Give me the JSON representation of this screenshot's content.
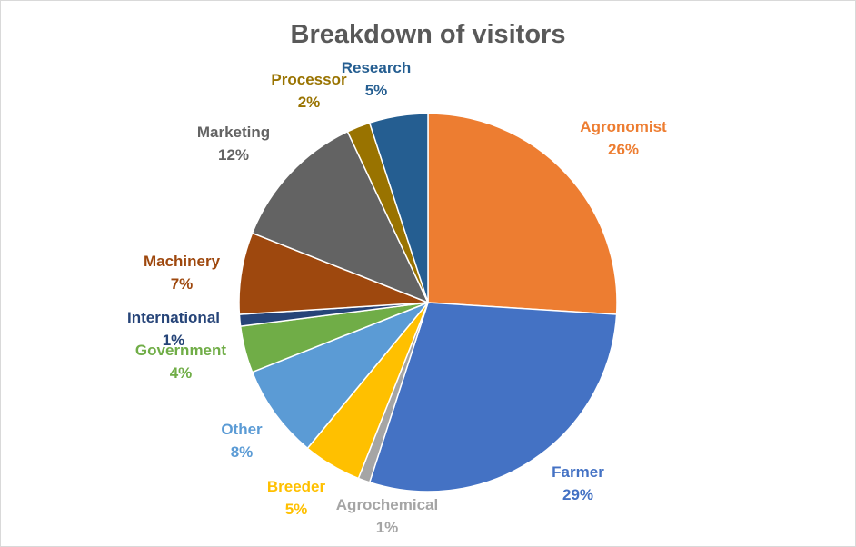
{
  "chart_data": {
    "type": "pie",
    "title": "Breakdown of visitors",
    "slices": [
      {
        "label": "Agronomist",
        "value": 26,
        "display": "26%",
        "color": "#ED7D31"
      },
      {
        "label": "Farmer",
        "value": 29,
        "display": "29%",
        "color": "#4472C4"
      },
      {
        "label": "Agrochemical",
        "value": 1,
        "display": "1%",
        "color": "#A5A5A5"
      },
      {
        "label": "Breeder",
        "value": 5,
        "display": "5%",
        "color": "#FFC000"
      },
      {
        "label": "Other",
        "value": 8,
        "display": "8%",
        "color": "#5B9BD5"
      },
      {
        "label": "Government",
        "value": 4,
        "display": "4%",
        "color": "#70AD47"
      },
      {
        "label": "International",
        "value": 1,
        "display": "1%",
        "color": "#264478"
      },
      {
        "label": "Machinery",
        "value": 7,
        "display": "7%",
        "color": "#9E480E"
      },
      {
        "label": "Marketing",
        "value": 12,
        "display": "12%",
        "color": "#636363"
      },
      {
        "label": "Processor",
        "value": 2,
        "display": "2%",
        "color": "#997300"
      },
      {
        "label": "Research",
        "value": 5,
        "display": "5%",
        "color": "#255E91"
      }
    ]
  }
}
